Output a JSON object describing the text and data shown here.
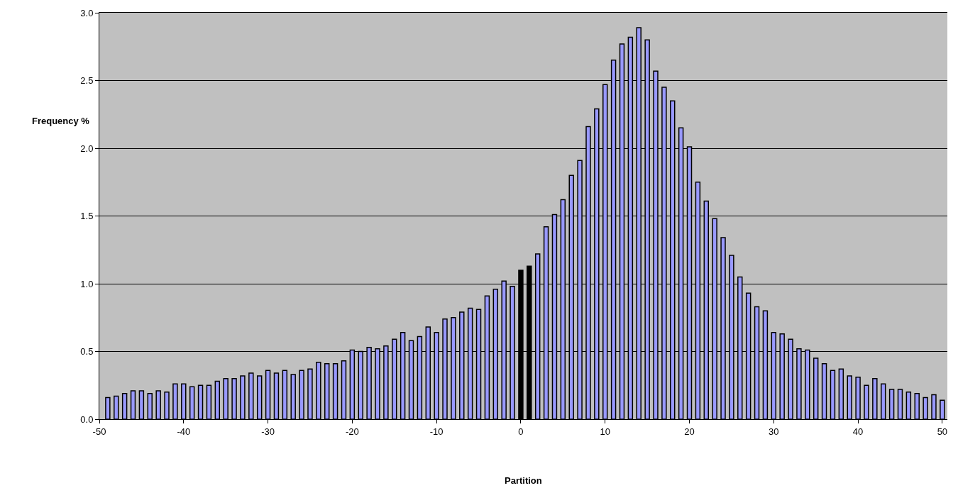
{
  "chart_data": {
    "type": "bar",
    "xlabel": "Partition",
    "ylabel": "Frequency %",
    "x": [
      -49,
      -48,
      -47,
      -46,
      -45,
      -44,
      -43,
      -42,
      -41,
      -40,
      -39,
      -38,
      -37,
      -36,
      -35,
      -34,
      -33,
      -32,
      -31,
      -30,
      -29,
      -28,
      -27,
      -26,
      -25,
      -24,
      -23,
      -22,
      -21,
      -20,
      -19,
      -18,
      -17,
      -16,
      -15,
      -14,
      -13,
      -12,
      -11,
      -10,
      -9,
      -8,
      -7,
      -6,
      -5,
      -4,
      -3,
      -2,
      -1,
      0,
      1,
      2,
      3,
      4,
      5,
      6,
      7,
      8,
      9,
      10,
      11,
      12,
      13,
      14,
      15,
      16,
      17,
      18,
      19,
      20,
      21,
      22,
      23,
      24,
      25,
      26,
      27,
      28,
      29,
      30,
      31,
      32,
      33,
      34,
      35,
      36,
      37,
      38,
      39,
      40,
      41,
      42,
      43,
      44,
      45,
      46,
      47,
      48,
      49,
      50
    ],
    "values": [
      0.16,
      0.17,
      0.19,
      0.21,
      0.21,
      0.19,
      0.21,
      0.2,
      0.26,
      0.26,
      0.24,
      0.25,
      0.25,
      0.28,
      0.3,
      0.3,
      0.32,
      0.34,
      0.32,
      0.36,
      0.34,
      0.36,
      0.33,
      0.36,
      0.37,
      0.42,
      0.41,
      0.41,
      0.43,
      0.51,
      0.5,
      0.53,
      0.52,
      0.54,
      0.59,
      0.64,
      0.58,
      0.61,
      0.68,
      0.64,
      0.74,
      0.75,
      0.79,
      0.82,
      0.81,
      0.91,
      0.96,
      1.02,
      0.98,
      1.1,
      1.13,
      1.22,
      1.42,
      1.51,
      1.62,
      1.8,
      1.91,
      2.16,
      2.29,
      2.47,
      2.65,
      2.77,
      2.82,
      2.89,
      2.8,
      2.57,
      2.45,
      2.35,
      2.15,
      2.01,
      1.75,
      1.61,
      1.48,
      1.34,
      1.21,
      1.05,
      0.93,
      0.83,
      0.8,
      0.64,
      0.63,
      0.59,
      0.52,
      0.51,
      0.45,
      0.41,
      0.36,
      0.37,
      0.32,
      0.31,
      0.25,
      0.3,
      0.26,
      0.22,
      0.22,
      0.2,
      0.19,
      0.16,
      0.18,
      0.14
    ],
    "colors": [
      "#9999ff",
      "#9999ff",
      "#9999ff",
      "#9999ff",
      "#9999ff",
      "#9999ff",
      "#9999ff",
      "#9999ff",
      "#9999ff",
      "#9999ff",
      "#9999ff",
      "#9999ff",
      "#9999ff",
      "#9999ff",
      "#9999ff",
      "#9999ff",
      "#9999ff",
      "#9999ff",
      "#9999ff",
      "#9999ff",
      "#9999ff",
      "#9999ff",
      "#9999ff",
      "#9999ff",
      "#9999ff",
      "#9999ff",
      "#9999ff",
      "#9999ff",
      "#9999ff",
      "#9999ff",
      "#9999ff",
      "#9999ff",
      "#9999ff",
      "#9999ff",
      "#9999ff",
      "#9999ff",
      "#9999ff",
      "#9999ff",
      "#9999ff",
      "#9999ff",
      "#9999ff",
      "#9999ff",
      "#9999ff",
      "#9999ff",
      "#9999ff",
      "#9999ff",
      "#9999ff",
      "#9999ff",
      "#9999ff",
      "#000000",
      "#000000",
      "#9999ff",
      "#9999ff",
      "#9999ff",
      "#9999ff",
      "#9999ff",
      "#9999ff",
      "#9999ff",
      "#9999ff",
      "#9999ff",
      "#9999ff",
      "#9999ff",
      "#9999ff",
      "#9999ff",
      "#9999ff",
      "#9999ff",
      "#9999ff",
      "#9999ff",
      "#9999ff",
      "#9999ff",
      "#9999ff",
      "#9999ff",
      "#9999ff",
      "#9999ff",
      "#9999ff",
      "#9999ff",
      "#9999ff",
      "#9999ff",
      "#9999ff",
      "#9999ff",
      "#9999ff",
      "#9999ff",
      "#9999ff",
      "#9999ff",
      "#9999ff",
      "#9999ff",
      "#9999ff",
      "#9999ff",
      "#9999ff",
      "#9999ff",
      "#9999ff",
      "#9999ff",
      "#9999ff",
      "#9999ff",
      "#9999ff",
      "#9999ff",
      "#9999ff",
      "#9999ff",
      "#9999ff",
      "#9999ff"
    ],
    "xlim": [
      -50,
      50.6
    ],
    "xticks": [
      -50,
      -40,
      -30,
      -20,
      -10,
      0,
      10,
      20,
      30,
      40,
      50
    ],
    "ylim": [
      0,
      3.0
    ],
    "yticks": [
      {
        "value": 0,
        "label": "0.0"
      },
      {
        "value": 0.5,
        "label": "0.5"
      },
      {
        "value": 1,
        "label": "1.0"
      },
      {
        "value": 1.5,
        "label": "1.5"
      },
      {
        "value": 2,
        "label": "2.0"
      },
      {
        "value": 2.5,
        "label": "2.5"
      },
      {
        "value": 3,
        "label": "3.0"
      }
    ],
    "grid": "y"
  }
}
